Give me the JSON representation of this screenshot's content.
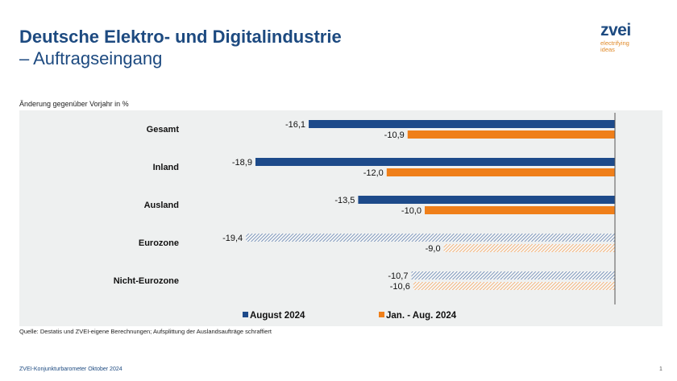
{
  "header": {
    "title": "Deutsche Elektro- und Digitalindustrie",
    "subtitle": "– Auftragseingang"
  },
  "logo": {
    "name": "zvei",
    "tagline1": "electrifying",
    "tagline2": "ideas"
  },
  "colors": {
    "blue": "#1d4a8a",
    "orange": "#ef7f1a",
    "bg": "#eef0f0"
  },
  "chart_data": {
    "type": "bar",
    "orientation": "horizontal",
    "ylabel": "Änderung gegenüber Vorjahr in %",
    "categories": [
      "Gesamt",
      "Inland",
      "Ausland",
      "Eurozone",
      "Nicht-Eurozone"
    ],
    "hatched": [
      false,
      false,
      false,
      true,
      true
    ],
    "series": [
      {
        "name": "August 2024",
        "values": [
          -16.1,
          -18.9,
          -13.5,
          -19.4,
          -10.7
        ],
        "labels": [
          "-16,1",
          "-18,9",
          "-13,5",
          "-19,4",
          "-10,7"
        ]
      },
      {
        "name": "Jan. - Aug. 2024",
        "values": [
          -10.9,
          -12.0,
          -10.0,
          -9.0,
          -10.6
        ],
        "labels": [
          "-10,9",
          "-12,0",
          "-10,0",
          "-9,0",
          "-10,6"
        ]
      }
    ],
    "xlim": [
      -20,
      0
    ],
    "legend": "bottom"
  },
  "source": "Quelle: Destatis und ZVEI-eigene Berechnungen; Aufsplittung der Auslandsaufträge schraffiert",
  "footer": "ZVEI-Konjunkturbarometer Oktober 2024",
  "page": "1"
}
